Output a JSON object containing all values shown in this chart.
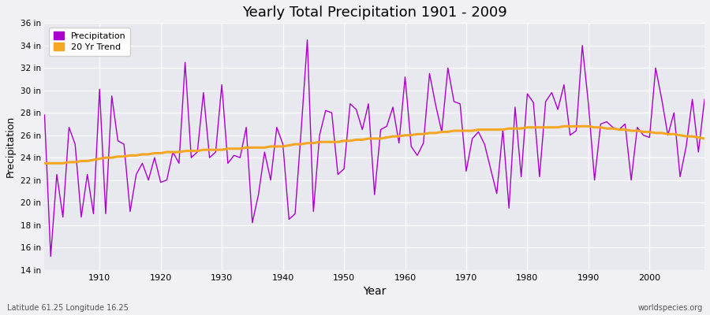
{
  "title": "Yearly Total Precipitation 1901 - 2009",
  "xlabel": "Year",
  "ylabel": "Precipitation",
  "subtitle_left": "Latitude 61.25 Longitude 16.25",
  "subtitle_right": "worldspecies.org",
  "bg_color": "#f0f0f5",
  "plot_bg_color": "#e8e8ef",
  "precip_color": "#aa00cc",
  "trend_color": "#f5a623",
  "ylim": [
    14,
    36
  ],
  "ytick_labels": [
    "14 in",
    "16 in",
    "18 in",
    "20 in",
    "22 in",
    "24 in",
    "26 in",
    "28 in",
    "30 in",
    "32 in",
    "34 in",
    "36 in"
  ],
  "ytick_values": [
    14,
    16,
    18,
    20,
    22,
    24,
    26,
    28,
    30,
    32,
    34,
    36
  ],
  "xticks": [
    1910,
    1920,
    1930,
    1940,
    1950,
    1960,
    1970,
    1980,
    1990,
    2000
  ],
  "years": [
    1901,
    1902,
    1903,
    1904,
    1905,
    1906,
    1907,
    1908,
    1909,
    1910,
    1911,
    1912,
    1913,
    1914,
    1915,
    1916,
    1917,
    1918,
    1919,
    1920,
    1921,
    1922,
    1923,
    1924,
    1925,
    1926,
    1927,
    1928,
    1929,
    1930,
    1931,
    1932,
    1933,
    1934,
    1935,
    1936,
    1937,
    1938,
    1939,
    1940,
    1941,
    1942,
    1943,
    1944,
    1945,
    1946,
    1947,
    1948,
    1949,
    1950,
    1951,
    1952,
    1953,
    1954,
    1955,
    1956,
    1957,
    1958,
    1959,
    1960,
    1961,
    1962,
    1963,
    1964,
    1965,
    1966,
    1967,
    1968,
    1969,
    1970,
    1971,
    1972,
    1973,
    1974,
    1975,
    1976,
    1977,
    1978,
    1979,
    1980,
    1981,
    1982,
    1983,
    1984,
    1985,
    1986,
    1987,
    1988,
    1989,
    1990,
    1991,
    1992,
    1993,
    1994,
    1995,
    1996,
    1997,
    1998,
    1999,
    2000,
    2001,
    2002,
    2003,
    2004,
    2005,
    2006,
    2007,
    2008,
    2009
  ],
  "precipitation": [
    27.8,
    15.2,
    22.5,
    18.7,
    26.7,
    25.2,
    18.7,
    22.5,
    19.0,
    30.1,
    19.0,
    29.5,
    25.5,
    25.2,
    19.2,
    22.5,
    23.5,
    22.0,
    24.0,
    21.8,
    22.0,
    24.5,
    23.5,
    32.5,
    24.0,
    24.5,
    29.8,
    24.0,
    24.5,
    30.5,
    23.5,
    24.2,
    24.0,
    26.7,
    18.2,
    20.7,
    24.5,
    22.0,
    26.7,
    25.2,
    18.5,
    19.0,
    26.5,
    34.5,
    19.2,
    26.0,
    28.2,
    28.0,
    22.5,
    23.0,
    28.8,
    28.3,
    26.5,
    28.8,
    20.7,
    26.5,
    26.8,
    28.5,
    25.3,
    31.2,
    25.0,
    24.2,
    25.3,
    31.5,
    28.7,
    26.3,
    32.0,
    29.0,
    28.8,
    22.8,
    25.7,
    26.3,
    25.2,
    23.0,
    20.8,
    26.5,
    19.5,
    28.5,
    22.3,
    29.7,
    28.9,
    22.3,
    29.0,
    29.8,
    28.3,
    30.5,
    26.0,
    26.4,
    34.0,
    28.8,
    22.0,
    27.0,
    27.2,
    26.7,
    26.5,
    27.0,
    22.0,
    26.7,
    26.0,
    25.8,
    32.0,
    29.2,
    26.0,
    28.0,
    22.3,
    25.0,
    29.2,
    24.5,
    29.2
  ],
  "trend": [
    23.5,
    23.5,
    23.5,
    23.5,
    23.6,
    23.6,
    23.7,
    23.7,
    23.8,
    23.9,
    24.0,
    24.0,
    24.1,
    24.1,
    24.2,
    24.2,
    24.3,
    24.3,
    24.4,
    24.4,
    24.5,
    24.5,
    24.5,
    24.6,
    24.6,
    24.6,
    24.7,
    24.7,
    24.7,
    24.7,
    24.8,
    24.8,
    24.8,
    24.9,
    24.9,
    24.9,
    24.9,
    25.0,
    25.0,
    25.0,
    25.1,
    25.2,
    25.2,
    25.3,
    25.3,
    25.4,
    25.4,
    25.4,
    25.4,
    25.5,
    25.5,
    25.6,
    25.6,
    25.7,
    25.7,
    25.7,
    25.8,
    25.9,
    25.9,
    26.0,
    26.0,
    26.1,
    26.1,
    26.2,
    26.2,
    26.3,
    26.3,
    26.4,
    26.4,
    26.4,
    26.4,
    26.5,
    26.5,
    26.5,
    26.5,
    26.5,
    26.6,
    26.6,
    26.6,
    26.7,
    26.7,
    26.7,
    26.7,
    26.7,
    26.7,
    26.8,
    26.8,
    26.8,
    26.8,
    26.8,
    26.7,
    26.7,
    26.6,
    26.6,
    26.5,
    26.5,
    26.4,
    26.4,
    26.3,
    26.3,
    26.2,
    26.2,
    26.1,
    26.1,
    26.0,
    25.9,
    25.9,
    25.8,
    25.7
  ]
}
